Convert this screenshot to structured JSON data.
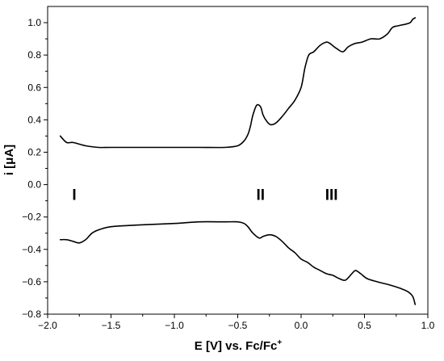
{
  "chart_data": {
    "type": "line",
    "title": "",
    "xlabel": "E [V] vs. Fc/Fc",
    "xlabel_superscript": "+",
    "ylabel": "i [μA]",
    "xlim": [
      -2.0,
      1.0
    ],
    "ylim": [
      -0.8,
      1.1
    ],
    "x_ticks": [
      -2.0,
      -1.5,
      -1.0,
      -0.5,
      0.0,
      0.5,
      1.0
    ],
    "x_tick_labels": [
      "−2.0",
      "−1.5",
      "−1.0",
      "−0.5",
      "0.0",
      "0.5",
      "1.0"
    ],
    "y_ticks": [
      -0.8,
      -0.6,
      -0.4,
      -0.2,
      0.0,
      0.2,
      0.4,
      0.6,
      0.8,
      1.0
    ],
    "y_tick_labels": [
      "−0.8",
      "−0.6",
      "−0.4",
      "−0.2",
      "0.0",
      "0.2",
      "0.4",
      "0.6",
      "0.8",
      "1.0"
    ],
    "grid": false,
    "legend": "none",
    "line_color": "#000000",
    "series": [
      {
        "x": [
          -1.9,
          -1.85,
          -1.8,
          -1.7,
          -1.6,
          -1.5,
          -1.3,
          -1.0,
          -0.8,
          -0.6,
          -0.5,
          -0.45,
          -0.42,
          -0.4,
          -0.38,
          -0.35,
          -0.32,
          -0.3,
          -0.27,
          -0.24,
          -0.2,
          -0.15,
          -0.1,
          -0.05,
          0.0,
          0.03,
          0.06,
          0.1,
          0.15,
          0.2,
          0.23,
          0.28,
          0.33,
          0.37,
          0.42,
          0.48,
          0.55,
          0.62,
          0.68,
          0.72,
          0.76,
          0.82,
          0.86,
          0.88,
          0.9
        ],
        "y": [
          0.3,
          0.26,
          0.26,
          0.24,
          0.23,
          0.23,
          0.23,
          0.23,
          0.23,
          0.23,
          0.24,
          0.27,
          0.31,
          0.36,
          0.43,
          0.49,
          0.48,
          0.43,
          0.39,
          0.37,
          0.38,
          0.42,
          0.47,
          0.52,
          0.6,
          0.72,
          0.8,
          0.82,
          0.86,
          0.88,
          0.87,
          0.84,
          0.82,
          0.85,
          0.87,
          0.88,
          0.9,
          0.9,
          0.93,
          0.97,
          0.98,
          0.99,
          1.0,
          1.02,
          1.03
        ]
      },
      {
        "x": [
          -1.9,
          -1.85,
          -1.8,
          -1.75,
          -1.7,
          -1.65,
          -1.6,
          -1.5,
          -1.3,
          -1.0,
          -0.8,
          -0.6,
          -0.5,
          -0.45,
          -0.42,
          -0.38,
          -0.33,
          -0.3,
          -0.25,
          -0.2,
          -0.15,
          -0.1,
          -0.05,
          0.0,
          0.05,
          0.1,
          0.15,
          0.2,
          0.25,
          0.3,
          0.35,
          0.4,
          0.43,
          0.47,
          0.52,
          0.6,
          0.7,
          0.78,
          0.84,
          0.88,
          0.9
        ],
        "y": [
          -0.34,
          -0.34,
          -0.35,
          -0.36,
          -0.34,
          -0.3,
          -0.28,
          -0.26,
          -0.25,
          -0.24,
          -0.23,
          -0.23,
          -0.23,
          -0.24,
          -0.26,
          -0.3,
          -0.33,
          -0.32,
          -0.31,
          -0.32,
          -0.35,
          -0.39,
          -0.42,
          -0.46,
          -0.48,
          -0.51,
          -0.53,
          -0.55,
          -0.56,
          -0.58,
          -0.59,
          -0.55,
          -0.53,
          -0.55,
          -0.58,
          -0.6,
          -0.62,
          -0.64,
          -0.66,
          -0.69,
          -0.74
        ]
      }
    ],
    "annotations": [
      {
        "text": "I",
        "x": -1.79,
        "y": -0.06
      },
      {
        "text": "II",
        "x": -0.32,
        "y": -0.06
      },
      {
        "text": "III",
        "x": 0.24,
        "y": -0.06
      }
    ]
  }
}
